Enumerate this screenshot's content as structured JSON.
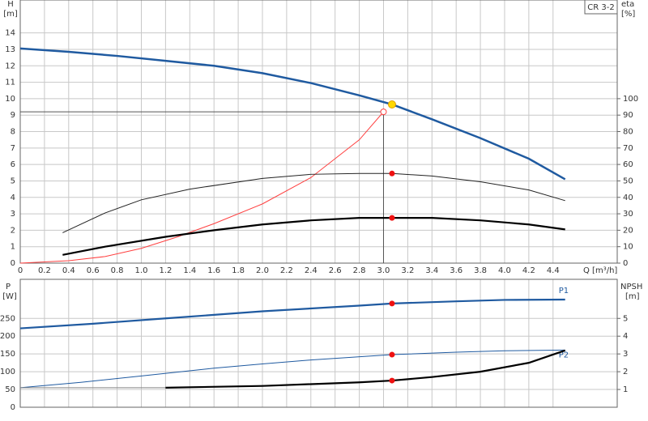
{
  "chart_data": [
    {
      "type": "line",
      "title": "CR 3-2",
      "ylabel": "H",
      "ylabel_unit": "[m]",
      "y2label": "eta",
      "y2label_unit": "[%]",
      "xlabel": "Q [m³/h]",
      "xlim": [
        0,
        4.93
      ],
      "ylim": [
        0,
        16
      ],
      "y2lim": [
        0,
        160
      ],
      "xticks": [
        0,
        0.2,
        0.4,
        0.6,
        0.8,
        {
          "value": 1,
          "label": "1.0"
        },
        1.2,
        1.4,
        1.6,
        1.8,
        {
          "value": 2,
          "label": "2.0"
        },
        2.2,
        2.4,
        2.6,
        2.8,
        {
          "value": 3,
          "label": "3.0"
        },
        3.2,
        3.4,
        3.6,
        3.8,
        {
          "value": 4,
          "label": "4.0"
        },
        4.2,
        4.4
      ],
      "yticks": [
        0,
        1,
        2,
        3,
        4,
        5,
        6,
        7,
        8,
        9,
        10,
        11,
        12,
        13,
        14
      ],
      "y2ticks": [
        0,
        10,
        20,
        30,
        40,
        50,
        60,
        70,
        80,
        90,
        100
      ],
      "grid": true,
      "series": [
        {
          "color": "#1f5aa0",
          "width": 2.5,
          "x": [
            0,
            0.4,
            0.8,
            1.2,
            1.6,
            2.0,
            2.4,
            2.8,
            3.07,
            3.4,
            3.8,
            4.2,
            4.5
          ],
          "values": [
            13.05,
            12.85,
            12.6,
            12.3,
            12.0,
            11.55,
            10.95,
            10.2,
            9.65,
            8.75,
            7.6,
            6.35,
            5.1
          ]
        },
        {
          "color": "#ff4040",
          "width": 1,
          "axis": "y2",
          "end_marker": "circle-open",
          "x": [
            0,
            0.4,
            0.7,
            1.0,
            1.3,
            1.6,
            2.0,
            2.4,
            2.8,
            3.0
          ],
          "values": [
            0,
            1.5,
            4,
            9,
            16,
            24,
            36,
            52,
            75,
            92
          ]
        },
        {
          "color": "#222222",
          "width": 1,
          "axis": "y2",
          "x": [
            0.35,
            0.7,
            1.0,
            1.4,
            2.0,
            2.4,
            2.8,
            3.07,
            3.4,
            3.8,
            4.2,
            4.5
          ],
          "values": [
            18.5,
            30.5,
            38.5,
            45,
            51.5,
            54,
            54.5,
            54.5,
            53,
            49.5,
            44.5,
            38
          ]
        },
        {
          "color": "#000000",
          "width": 2.2,
          "axis": "y2",
          "x": [
            0.35,
            0.7,
            1.2,
            1.6,
            2.0,
            2.4,
            2.8,
            3.07,
            3.4,
            3.8,
            4.2,
            4.5
          ],
          "values": [
            5,
            10,
            16,
            20,
            23.5,
            26,
            27.5,
            27.5,
            27.5,
            26,
            23.5,
            20.5
          ]
        }
      ],
      "points": [
        {
          "x": 3.07,
          "y": 9.65,
          "color": "#ffd800"
        },
        {
          "x": 3.07,
          "y": 54.5,
          "color": "#ee1111",
          "axis": "y2"
        },
        {
          "x": 3.07,
          "y": 27.5,
          "color": "#ee1111",
          "axis": "y2"
        }
      ],
      "guide_x": 3.0,
      "guide_y": 9.2
    },
    {
      "type": "line",
      "ylabel": "P",
      "ylabel_unit": "[W]",
      "y2label": "NPSH",
      "y2label_unit": "[m]",
      "xlim": [
        0,
        4.93
      ],
      "ylim": [
        0,
        360
      ],
      "y2lim": [
        0,
        7.2
      ],
      "yticks": [
        0,
        50,
        100,
        150,
        200,
        250
      ],
      "y2ticks": [
        1,
        2,
        3,
        4,
        5
      ],
      "grid": true,
      "series": [
        {
          "name": "P1",
          "color": "#1f5aa0",
          "width": 2.2,
          "x": [
            0,
            0.6,
            1.2,
            1.6,
            2.0,
            2.4,
            2.8,
            3.07,
            3.6,
            4.0,
            4.5
          ],
          "values": [
            222,
            235,
            250,
            260,
            270,
            278,
            286,
            292,
            298,
            302,
            303
          ]
        },
        {
          "name": "P2",
          "color": "#1f5aa0",
          "width": 1,
          "x": [
            0,
            0.5,
            1.0,
            1.6,
            2.0,
            2.4,
            3.07,
            3.6,
            4.0,
            4.5
          ],
          "values": [
            55,
            70,
            88,
            110,
            122,
            133,
            148,
            155,
            159,
            161
          ]
        },
        {
          "color": "#888888",
          "width": 1,
          "axis": "y2",
          "x": [
            0,
            1.2
          ],
          "values": [
            1.1,
            1.1
          ]
        },
        {
          "color": "#000000",
          "width": 2.2,
          "axis": "y2",
          "x": [
            1.2,
            2.0,
            2.4,
            2.8,
            3.07,
            3.4,
            3.8,
            4.2,
            4.5
          ],
          "values": [
            1.1,
            1.2,
            1.3,
            1.4,
            1.5,
            1.7,
            2.0,
            2.5,
            3.2
          ]
        }
      ],
      "points": [
        {
          "x": 3.07,
          "y": 292,
          "color": "#ee1111"
        },
        {
          "x": 3.07,
          "y": 148,
          "color": "#ee1111"
        },
        {
          "x": 3.07,
          "y": 1.5,
          "color": "#ee1111",
          "axis": "y2"
        }
      ]
    }
  ]
}
